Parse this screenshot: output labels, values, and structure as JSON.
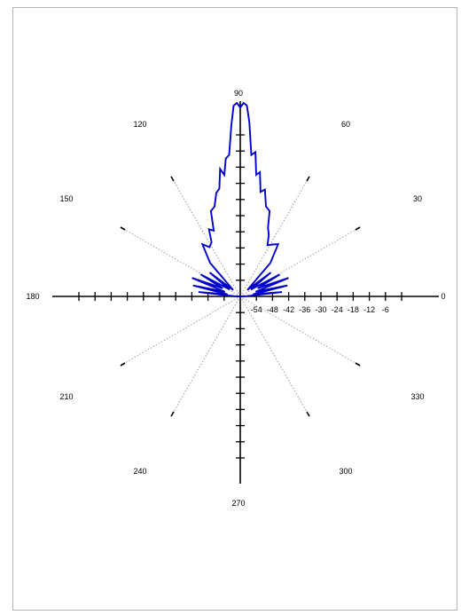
{
  "chart_data": {
    "type": "polar-line",
    "title": "",
    "colors": {
      "trace": "#0000cc",
      "axes": "#000000",
      "spokes": "#9a9a9a"
    },
    "angle_labels": [
      "0",
      "30",
      "60",
      "90",
      "120",
      "150",
      "180",
      "210",
      "240",
      "270",
      "300",
      "330"
    ],
    "radial_tick_labels": [
      "-54",
      "-48",
      "-42",
      "-36",
      "-30",
      "-24",
      "-18",
      "-12",
      "-6"
    ],
    "radial_range_db": [
      -60,
      0
    ],
    "series": [
      {
        "points": [
          {
            "angle": 2,
            "db": -58
          },
          {
            "angle": 6,
            "db": -47
          },
          {
            "angle": 9,
            "db": -56
          },
          {
            "angle": 13,
            "db": -45
          },
          {
            "angle": 17,
            "db": -55
          },
          {
            "angle": 21,
            "db": -44
          },
          {
            "angle": 25,
            "db": -54
          },
          {
            "angle": 29,
            "db": -46
          },
          {
            "angle": 33,
            "db": -56
          },
          {
            "angle": 38,
            "db": -48
          },
          {
            "angle": 42,
            "db": -57
          },
          {
            "angle": 48,
            "db": -46
          },
          {
            "angle": 54,
            "db": -40
          },
          {
            "angle": 58,
            "db": -41
          },
          {
            "angle": 62,
            "db": -42
          },
          {
            "angle": 65,
            "db": -39
          },
          {
            "angle": 68,
            "db": -37
          },
          {
            "angle": 71,
            "db": -32
          },
          {
            "angle": 74,
            "db": -31
          },
          {
            "angle": 77,
            "db": -26
          },
          {
            "angle": 79,
            "db": -27
          },
          {
            "angle": 81,
            "db": -21
          },
          {
            "angle": 82.5,
            "db": -22
          },
          {
            "angle": 84,
            "db": -15
          },
          {
            "angle": 85.5,
            "db": -16
          },
          {
            "angle": 87,
            "db": -6
          },
          {
            "angle": 88,
            "db": -0.8
          },
          {
            "angle": 89,
            "db": 0
          },
          {
            "angle": 90,
            "db": -1.4
          },
          {
            "angle": 91,
            "db": 0
          },
          {
            "angle": 92,
            "db": -0.8
          },
          {
            "angle": 93,
            "db": -7
          },
          {
            "angle": 94.5,
            "db": -16
          },
          {
            "angle": 96,
            "db": -17
          },
          {
            "angle": 97.5,
            "db": -22
          },
          {
            "angle": 99,
            "db": -20
          },
          {
            "angle": 101,
            "db": -26
          },
          {
            "angle": 103,
            "db": -27
          },
          {
            "angle": 106,
            "db": -31
          },
          {
            "angle": 109,
            "db": -32
          },
          {
            "angle": 112,
            "db": -38
          },
          {
            "angle": 115,
            "db": -37
          },
          {
            "angle": 118,
            "db": -41
          },
          {
            "angle": 122,
            "db": -42
          },
          {
            "angle": 126,
            "db": -40
          },
          {
            "angle": 132,
            "db": -46
          },
          {
            "angle": 138,
            "db": -57
          },
          {
            "angle": 142,
            "db": -48
          },
          {
            "angle": 147,
            "db": -56
          },
          {
            "angle": 151,
            "db": -46
          },
          {
            "angle": 155,
            "db": -54
          },
          {
            "angle": 159,
            "db": -44
          },
          {
            "angle": 163,
            "db": -55
          },
          {
            "angle": 167,
            "db": -45
          },
          {
            "angle": 171,
            "db": -56
          },
          {
            "angle": 174,
            "db": -47
          },
          {
            "angle": 178,
            "db": -58
          }
        ]
      }
    ]
  }
}
